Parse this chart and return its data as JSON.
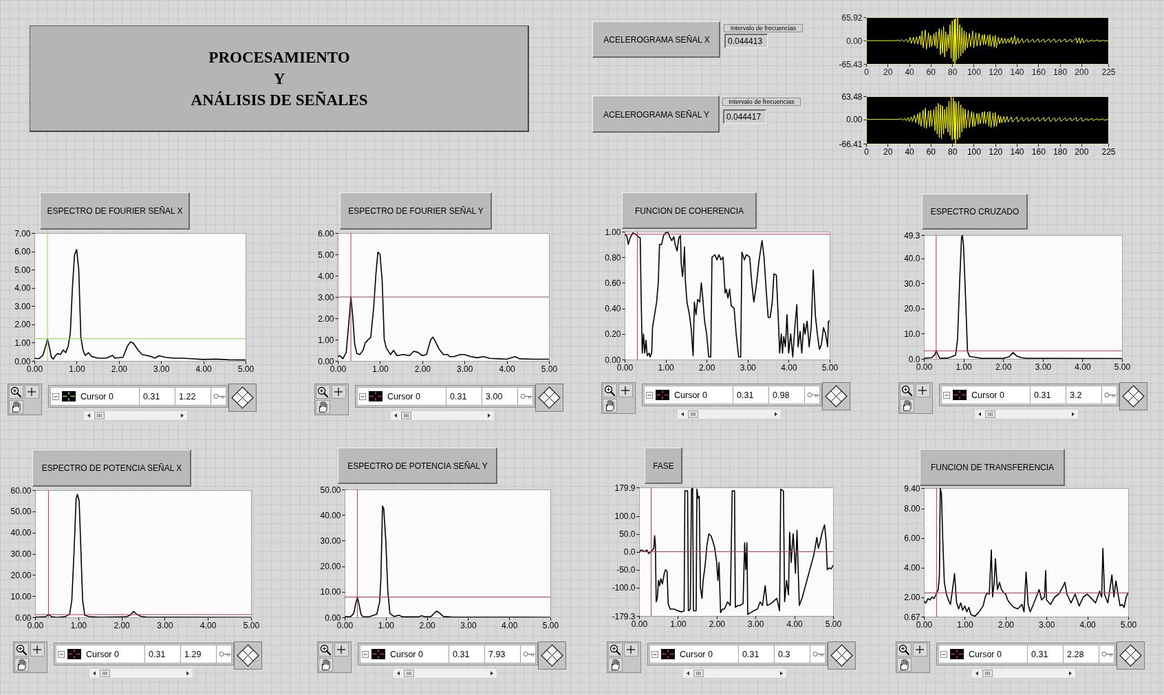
{
  "chart_data": [
    {
      "type": "other",
      "title": "PROCESAMIENTO\nY\nANÁLISIS DE SEÑALES"
    },
    {
      "type": "line",
      "ylabel": "ACELEROGRAMA SEÑAL X",
      "annotations": [
        "Intervalo de frecuencias",
        "0.044413"
      ],
      "color": "#ffff00",
      "xlim": [
        0,
        225
      ],
      "ylim": [
        -65.43,
        65.92
      ],
      "xticks": [
        0,
        20,
        40,
        60,
        80,
        100,
        120,
        140,
        160,
        180,
        200,
        225
      ],
      "yticks": [
        -65.43,
        {
          "value": 0,
          "label": "0.00"
        },
        65.92
      ],
      "x": [
        0,
        10,
        20,
        28,
        30,
        31,
        33,
        35,
        37,
        39,
        41,
        42,
        44,
        45,
        47,
        48,
        50,
        51,
        52,
        53,
        55,
        56,
        58,
        59,
        60,
        61,
        63,
        64,
        65,
        66,
        68,
        69,
        70,
        71,
        72,
        73,
        74,
        75,
        76,
        77,
        78,
        79,
        80,
        81,
        82,
        82.5,
        83,
        84,
        85,
        86,
        87,
        88,
        89,
        90,
        91,
        92,
        93,
        94,
        96,
        97,
        99,
        100,
        102,
        103,
        105,
        106,
        108,
        109,
        110,
        111,
        113,
        114,
        115,
        116,
        118,
        119,
        120,
        121,
        123,
        124,
        126,
        127,
        129,
        130,
        132,
        133,
        135,
        136,
        138,
        139,
        141,
        142,
        145,
        146,
        150,
        151,
        155,
        156,
        160,
        161,
        165,
        166,
        170,
        171,
        175,
        176,
        180,
        181,
        185,
        186,
        190,
        191,
        195,
        196,
        198,
        199,
        201,
        202,
        205,
        206,
        210,
        211,
        215,
        216,
        220,
        221,
        225
      ],
      "values": [
        0,
        0,
        0,
        0,
        2,
        -2,
        3,
        -3,
        4,
        -4,
        9,
        -8,
        10,
        -9,
        11,
        -10,
        14,
        -12,
        27,
        -20,
        30,
        -24,
        22,
        -18,
        15,
        -17,
        20,
        -15,
        24,
        -22,
        34,
        -40,
        30,
        -35,
        40,
        -46,
        25,
        -30,
        18,
        -22,
        45,
        -50,
        56,
        -59,
        60,
        -65,
        62,
        -55,
        65,
        -50,
        45,
        -43,
        37,
        -35,
        28,
        -27,
        24,
        -20,
        21,
        -17,
        27,
        -20,
        22,
        -15,
        21,
        -14,
        16,
        -12,
        18,
        -11,
        15,
        -15,
        17,
        -17,
        13,
        -18,
        15,
        -20,
        10,
        -9,
        8,
        -8,
        7,
        -8,
        6,
        -6,
        9,
        -9,
        13,
        -11,
        8,
        -7,
        6,
        -6,
        5,
        -5,
        4,
        -5,
        5,
        -4,
        4,
        -5,
        5,
        -4,
        5,
        -5,
        4,
        -4,
        5,
        -4,
        4,
        -4,
        7,
        -7,
        8,
        -8,
        7,
        -6,
        3,
        -3,
        2,
        -2,
        2,
        -2,
        1,
        -1,
        0
      ]
    },
    {
      "type": "line",
      "ylabel": "ACELEROGRAMA SEÑAL Y",
      "annotations": [
        "Intervalo de frecuencias",
        "0.044417"
      ],
      "color": "#ffff00",
      "xlim": [
        0,
        225
      ],
      "ylim": [
        -66.41,
        63.48
      ],
      "xticks": [
        0,
        20,
        40,
        60,
        80,
        100,
        120,
        140,
        160,
        180,
        200,
        225
      ],
      "yticks": [
        -66.41,
        {
          "value": 0,
          "label": "0.00"
        },
        63.48
      ],
      "x": [
        0,
        15,
        30,
        33,
        34,
        36,
        37,
        39,
        40,
        42,
        43,
        45,
        46,
        48,
        49,
        50,
        51,
        53,
        54,
        55,
        56,
        58,
        59,
        60,
        61,
        63,
        64,
        65,
        66,
        67,
        68,
        69,
        70,
        71,
        72,
        73,
        74,
        75,
        76,
        77,
        78,
        79,
        80,
        81,
        82,
        82.5,
        83,
        84,
        85,
        86,
        87,
        88,
        89,
        90,
        91,
        92,
        93,
        95,
        96,
        98,
        99,
        100,
        101,
        103,
        104,
        105,
        106,
        108,
        109,
        110,
        111,
        113,
        114,
        115,
        116,
        118,
        119,
        120,
        121,
        123,
        124,
        125,
        126,
        128,
        129,
        131,
        132,
        135,
        136,
        140,
        141,
        145,
        146,
        150,
        151,
        155,
        156,
        160,
        161,
        165,
        166,
        170,
        171,
        175,
        176,
        180,
        181,
        185,
        186,
        190,
        191,
        195,
        196,
        200,
        201,
        205,
        206,
        210,
        211,
        215,
        216,
        220,
        221,
        225
      ],
      "values": [
        0,
        0,
        0,
        2,
        -2,
        3,
        -3,
        5,
        -5,
        7,
        -6,
        12,
        -9,
        15,
        -14,
        19,
        -19,
        25,
        -22,
        31,
        -25,
        24,
        -20,
        25,
        -19,
        28,
        -31,
        35,
        -40,
        44,
        -50,
        40,
        -53,
        37,
        -40,
        28,
        -25,
        35,
        -35,
        50,
        -44,
        63,
        -56,
        59,
        -53,
        50,
        -66,
        45,
        -55,
        50,
        -50,
        40,
        -35,
        31,
        -25,
        28,
        -24,
        25,
        -22,
        22,
        -20,
        19,
        -19,
        17,
        -14,
        16,
        -12,
        20,
        -12,
        22,
        -12,
        20,
        -18,
        22,
        -22,
        18,
        -20,
        19,
        -19,
        12,
        -10,
        9,
        -9,
        8,
        -8,
        8,
        -7,
        7,
        -7,
        7,
        -7,
        6,
        -5,
        5,
        -5,
        5,
        -4,
        5,
        -5,
        5,
        -5,
        6,
        -6,
        5,
        -5,
        5,
        -5,
        4,
        -4,
        4,
        -4,
        5,
        -5,
        5,
        -5,
        3,
        -3,
        3,
        -3,
        2,
        -2,
        2,
        -2,
        0
      ]
    },
    {
      "type": "line",
      "title": "ESPECTRO DE FOURIER SEÑAL X",
      "annotations": [
        "Cursor 0",
        "0.31",
        "1.22"
      ],
      "color": "#000000",
      "xlim": [
        0,
        5
      ],
      "ylim": [
        0,
        7
      ],
      "xticks": [
        {
          "value": 0,
          "label": "0.00"
        },
        {
          "value": 1,
          "label": "1.00"
        },
        {
          "value": 2,
          "label": "2.00"
        },
        {
          "value": 3,
          "label": "3.00"
        },
        {
          "value": 4,
          "label": "4.00"
        },
        {
          "value": 5,
          "label": "5.00"
        }
      ],
      "yticks": [
        {
          "value": 0,
          "label": "0.00"
        },
        {
          "value": 1,
          "label": "1.00"
        },
        {
          "value": 2,
          "label": "2.00"
        },
        {
          "value": 3,
          "label": "3.00"
        },
        {
          "value": 4,
          "label": "4.00"
        },
        {
          "value": 5,
          "label": "5.00"
        },
        {
          "value": 6,
          "label": "6.00"
        },
        {
          "value": 7,
          "label": "7.00"
        }
      ],
      "ref_lines": [
        {
          "axis": "x",
          "value": 0.31,
          "color": "#80e050"
        },
        {
          "axis": "y",
          "value": 1.22,
          "color": "#80e050"
        }
      ],
      "x": [
        0,
        0.1,
        0.2,
        0.28,
        0.31,
        0.36,
        0.4,
        0.45,
        0.5,
        0.55,
        0.62,
        0.68,
        0.74,
        0.8,
        0.85,
        0.9,
        0.95,
        1.0,
        1.05,
        1.1,
        1.15,
        1.2,
        1.28,
        1.35,
        1.5,
        1.7,
        1.85,
        1.9,
        2.1,
        2.2,
        2.28,
        2.35,
        2.45,
        2.55,
        2.65,
        2.75,
        2.85,
        2.95,
        3.1,
        3.3,
        3.5,
        3.7,
        4.0,
        4.3,
        4.6,
        5.0
      ],
      "values": [
        0.14,
        0.12,
        0.3,
        0.9,
        1.2,
        0.7,
        0.2,
        0.1,
        0.3,
        0.4,
        0.35,
        0.6,
        0.45,
        0.8,
        1.5,
        4.0,
        5.8,
        6.1,
        5.0,
        1.3,
        0.6,
        0.3,
        0.45,
        0.25,
        0.15,
        0.15,
        0.3,
        0.15,
        0.2,
        0.8,
        1.05,
        0.95,
        0.6,
        0.35,
        0.3,
        0.25,
        0.15,
        0.28,
        0.2,
        0.15,
        0.15,
        0.12,
        0.08,
        0.1,
        0.06,
        0.05
      ]
    },
    {
      "type": "line",
      "title": "ESPECTRO DE FOURIER SEÑAL Y",
      "annotations": [
        "Cursor 0",
        "0.31",
        "3.00"
      ],
      "color": "#000000",
      "xlim": [
        0,
        5
      ],
      "ylim": [
        0,
        6
      ],
      "xticks": [
        {
          "value": 0,
          "label": "0.00"
        },
        {
          "value": 1,
          "label": "1.00"
        },
        {
          "value": 2,
          "label": "2.00"
        },
        {
          "value": 3,
          "label": "3.00"
        },
        {
          "value": 4,
          "label": "4.00"
        },
        {
          "value": 5,
          "label": "5.00"
        }
      ],
      "yticks": [
        {
          "value": 0,
          "label": "0.00"
        },
        {
          "value": 1,
          "label": "1.00"
        },
        {
          "value": 2,
          "label": "2.00"
        },
        {
          "value": 3,
          "label": "3.00"
        },
        {
          "value": 4,
          "label": "4.00"
        },
        {
          "value": 5,
          "label": "5.00"
        },
        {
          "value": 6,
          "label": "6.00"
        }
      ],
      "ref_lines": [
        {
          "axis": "x",
          "value": 0.31,
          "color": "#c8325f"
        },
        {
          "axis": "y",
          "value": 3.0,
          "color": "#c8325f"
        }
      ],
      "x": [
        0,
        0.05,
        0.12,
        0.2,
        0.27,
        0.31,
        0.35,
        0.4,
        0.45,
        0.52,
        0.6,
        0.65,
        0.72,
        0.78,
        0.85,
        0.9,
        0.95,
        1.0,
        1.05,
        1.1,
        1.15,
        1.25,
        1.32,
        1.4,
        1.55,
        1.7,
        1.8,
        1.9,
        2.0,
        2.1,
        2.2,
        2.25,
        2.3,
        2.4,
        2.5,
        2.6,
        2.65,
        2.75,
        2.9,
        3.0,
        3.15,
        3.3,
        3.45,
        3.6,
        3.8,
        4.0,
        4.2,
        4.3,
        4.6,
        5.0
      ],
      "values": [
        0.2,
        0.25,
        0.1,
        0.4,
        2.0,
        3.0,
        2.2,
        0.8,
        0.35,
        0.3,
        0.5,
        0.85,
        1.0,
        1.1,
        2.5,
        4.0,
        5.1,
        5.0,
        3.8,
        1.0,
        0.6,
        0.3,
        0.5,
        0.25,
        0.3,
        0.25,
        0.45,
        0.4,
        0.25,
        0.3,
        1.0,
        1.12,
        0.95,
        0.55,
        0.3,
        0.3,
        0.2,
        0.2,
        0.3,
        0.3,
        0.2,
        0.15,
        0.2,
        0.12,
        0.1,
        0.08,
        0.2,
        0.1,
        0.08,
        0.08
      ]
    },
    {
      "type": "line",
      "title": "FUNCION DE COHERENCIA",
      "annotations": [
        "Cursor 0",
        "0.31",
        "0.98"
      ],
      "color": "#000000",
      "xlim": [
        0,
        5
      ],
      "ylim": [
        0,
        1
      ],
      "xticks": [
        {
          "value": 0,
          "label": "0.00"
        },
        {
          "value": 1,
          "label": "1.00"
        },
        {
          "value": 2,
          "label": "2.00"
        },
        {
          "value": 3,
          "label": "3.00"
        },
        {
          "value": 4,
          "label": "4.00"
        },
        {
          "value": 5,
          "label": "5.00"
        }
      ],
      "yticks": [
        {
          "value": 0,
          "label": "0.00"
        },
        {
          "value": 0.2,
          "label": "0.20"
        },
        {
          "value": 0.4,
          "label": "0.40"
        },
        {
          "value": 0.6,
          "label": "0.60"
        },
        {
          "value": 0.8,
          "label": "0.80"
        },
        {
          "value": 1,
          "label": "1.00"
        }
      ],
      "ref_lines": [
        {
          "axis": "x",
          "value": 0.31,
          "color": "#c8325f"
        },
        {
          "axis": "y",
          "value": 0.98,
          "color": "#c8325f"
        }
      ],
      "x": [
        0,
        0.05,
        0.09,
        0.13,
        0.2,
        0.27,
        0.33,
        0.38,
        0.4,
        0.43,
        0.46,
        0.49,
        0.52,
        0.55,
        0.6,
        0.62,
        0.66,
        0.68,
        0.72,
        0.78,
        0.82,
        0.85,
        0.9,
        0.95,
        1.0,
        1.05,
        1.1,
        1.15,
        1.2,
        1.23,
        1.28,
        1.32,
        1.36,
        1.38,
        1.41,
        1.43,
        1.46,
        1.48,
        1.52,
        1.58,
        1.62,
        1.67,
        1.7,
        1.74,
        1.78,
        1.83,
        1.87,
        1.9,
        1.95,
        2.0,
        2.05,
        2.1,
        2.13,
        2.2,
        2.25,
        2.3,
        2.35,
        2.4,
        2.45,
        2.48,
        2.52,
        2.56,
        2.6,
        2.67,
        2.72,
        2.78,
        2.83,
        2.86,
        2.92,
        2.97,
        3.05,
        3.1,
        3.15,
        3.2,
        3.28,
        3.35,
        3.4,
        3.45,
        3.5,
        3.55,
        3.6,
        3.64,
        3.7,
        3.75,
        3.78,
        3.82,
        3.85,
        3.88,
        3.92,
        3.96,
        4.0,
        4.05,
        4.1,
        4.15,
        4.2,
        4.23,
        4.28,
        4.32,
        4.37,
        4.4,
        4.45,
        4.5,
        4.55,
        4.6,
        4.65,
        4.7,
        4.75,
        4.8,
        4.85,
        4.9,
        4.95,
        4.97,
        5.0
      ],
      "values": [
        0.98,
        0.97,
        0.9,
        0.95,
        0.99,
        0.98,
        0.96,
        0.95,
        0.52,
        0.05,
        0.2,
        0.05,
        0.15,
        0.03,
        0.05,
        0.02,
        0.05,
        0.25,
        0.33,
        0.45,
        0.6,
        0.9,
        0.9,
        0.97,
        0.99,
        1.0,
        0.96,
        0.93,
        0.96,
        0.9,
        0.85,
        0.95,
        0.97,
        0.75,
        0.65,
        0.7,
        0.88,
        0.62,
        0.45,
        0.35,
        0.25,
        0.03,
        0.45,
        0.35,
        0.47,
        0.45,
        0.6,
        0.5,
        0.3,
        0.2,
        0.02,
        0.02,
        0.8,
        0.82,
        0.78,
        0.82,
        0.78,
        0.8,
        0.52,
        0.55,
        0.48,
        0.55,
        0.42,
        0.4,
        0.2,
        0.02,
        0.02,
        0.84,
        0.78,
        0.82,
        0.8,
        0.6,
        0.45,
        0.55,
        0.78,
        0.93,
        0.8,
        0.55,
        0.33,
        0.33,
        0.45,
        0.67,
        0.66,
        0.3,
        0.05,
        0.2,
        0.05,
        0.18,
        0.1,
        0.35,
        0.05,
        0.2,
        0.02,
        0.25,
        0.43,
        0.1,
        0.22,
        0.05,
        0.28,
        0.2,
        0.3,
        0.1,
        0.25,
        0.7,
        0.35,
        0.2,
        0.08,
        0.12,
        0.25,
        0.2,
        0.1,
        0.3,
        0.3
      ]
    },
    {
      "type": "line",
      "title": "ESPECTRO CRUZADO",
      "annotations": [
        "Cursor 0",
        "0.31",
        "3.2"
      ],
      "color": "#000000",
      "xlim": [
        0,
        5
      ],
      "ylim": [
        0,
        49.3
      ],
      "xticks": [
        {
          "value": 0,
          "label": "0.00"
        },
        {
          "value": 1,
          "label": "1.00"
        },
        {
          "value": 2,
          "label": "2.00"
        },
        {
          "value": 3,
          "label": "3.00"
        },
        {
          "value": 4,
          "label": "4.00"
        },
        {
          "value": 5,
          "label": "5.00"
        }
      ],
      "yticks": [
        {
          "value": 0,
          "label": "0.0"
        },
        {
          "value": 10,
          "label": "10.0"
        },
        {
          "value": 20,
          "label": "20.0"
        },
        {
          "value": 30,
          "label": "30.0"
        },
        {
          "value": 40,
          "label": "40.0"
        },
        49.3
      ],
      "ref_lines": [
        {
          "axis": "x",
          "value": 0.31,
          "color": "#c8325f"
        },
        {
          "axis": "y",
          "value": 3.2,
          "color": "#c8325f"
        }
      ],
      "x": [
        0,
        0.2,
        0.27,
        0.31,
        0.36,
        0.4,
        0.6,
        0.7,
        0.8,
        0.85,
        0.9,
        0.95,
        0.97,
        1.0,
        1.05,
        1.1,
        1.15,
        1.2,
        1.3,
        1.45,
        2.0,
        2.15,
        2.25,
        2.35,
        2.45,
        2.6,
        5.0
      ],
      "values": [
        0.2,
        0.5,
        1.5,
        3.2,
        1.5,
        0.2,
        0.3,
        0.8,
        1.5,
        8.0,
        30.0,
        48.5,
        49.3,
        45,
        25,
        3.0,
        1.0,
        0.8,
        0.6,
        0.2,
        0.2,
        0.8,
        2.5,
        1.0,
        0.5,
        0.2,
        0.1
      ]
    },
    {
      "type": "line",
      "title": "ESPECTRO DE POTENCIA SEÑAL X",
      "annotations": [
        "Cursor 0",
        "0.31",
        "1.29"
      ],
      "color": "#000000",
      "xlim": [
        0,
        5
      ],
      "ylim": [
        0,
        60
      ],
      "xticks": [
        {
          "value": 0,
          "label": "0.00"
        },
        {
          "value": 1,
          "label": "1.00"
        },
        {
          "value": 2,
          "label": "2.00"
        },
        {
          "value": 3,
          "label": "3.00"
        },
        {
          "value": 4,
          "label": "4.00"
        },
        {
          "value": 5,
          "label": "5.00"
        }
      ],
      "yticks": [
        {
          "value": 0,
          "label": "0.00"
        },
        {
          "value": 10,
          "label": "10.00"
        },
        {
          "value": 20,
          "label": "20.00"
        },
        {
          "value": 30,
          "label": "30.00"
        },
        {
          "value": 40,
          "label": "40.00"
        },
        {
          "value": 50,
          "label": "50.00"
        },
        {
          "value": 60,
          "label": "60.00"
        }
      ],
      "ref_lines": [
        {
          "axis": "x",
          "value": 0.31,
          "color": "#c8325f"
        },
        {
          "axis": "y",
          "value": 1.29,
          "color": "#c8325f"
        }
      ],
      "x": [
        0,
        0.25,
        0.31,
        0.38,
        0.5,
        0.7,
        0.8,
        0.85,
        0.9,
        0.95,
        0.98,
        1.02,
        1.05,
        1.1,
        1.15,
        1.25,
        1.5,
        2.1,
        2.2,
        2.28,
        2.35,
        2.45,
        2.6,
        5.0
      ],
      "values": [
        0.1,
        0.3,
        1.4,
        0.3,
        0,
        0.3,
        1.5,
        8.0,
        30,
        56,
        58,
        55,
        38,
        8,
        1.0,
        0.3,
        0.1,
        0.2,
        1.0,
        2.8,
        1.5,
        0.4,
        0.1,
        0
      ]
    },
    {
      "type": "line",
      "title": "ESPECTRO DE POTENCIA SEÑAL Y",
      "annotations": [
        "Cursor 0",
        "0.31",
        "7.93"
      ],
      "color": "#000000",
      "xlim": [
        0,
        5
      ],
      "ylim": [
        0,
        50
      ],
      "xticks": [
        {
          "value": 0,
          "label": "0.00"
        },
        {
          "value": 1,
          "label": "1.00"
        },
        {
          "value": 2,
          "label": "2.00"
        },
        {
          "value": 3,
          "label": "3.00"
        },
        {
          "value": 4,
          "label": "4.00"
        },
        {
          "value": 5,
          "label": "5.00"
        }
      ],
      "yticks": [
        {
          "value": 0,
          "label": "0.00"
        },
        {
          "value": 10,
          "label": "10.00"
        },
        {
          "value": 20,
          "label": "20.00"
        },
        {
          "value": 30,
          "label": "30.00"
        },
        {
          "value": 40,
          "label": "40.00"
        },
        {
          "value": 50,
          "label": "50.00"
        }
      ],
      "ref_lines": [
        {
          "axis": "x",
          "value": 0.31,
          "color": "#c8325f"
        },
        {
          "axis": "y",
          "value": 7.93,
          "color": "#c8325f"
        }
      ],
      "x": [
        0,
        0.15,
        0.22,
        0.27,
        0.31,
        0.35,
        0.4,
        0.45,
        0.6,
        0.7,
        0.78,
        0.85,
        0.88,
        0.92,
        0.95,
        1.0,
        1.05,
        1.1,
        1.2,
        1.32,
        1.4,
        1.8,
        1.87,
        1.95,
        2.1,
        2.2,
        2.25,
        2.32,
        2.4,
        2.6,
        5.0
      ],
      "values": [
        0.2,
        0.3,
        1.5,
        5.5,
        7.9,
        5.0,
        1.0,
        0.2,
        0.2,
        0.8,
        1.2,
        6.0,
        15,
        43.5,
        42.5,
        30,
        10,
        1.5,
        0.3,
        0.8,
        0.2,
        0.2,
        0.6,
        0.2,
        0.3,
        2.0,
        2.4,
        1.5,
        0.3,
        0.1,
        0
      ]
    },
    {
      "type": "line",
      "title": "FASE",
      "annotations": [
        "Cursor 0",
        "0.31",
        "0.3"
      ],
      "color": "#000000",
      "xlim": [
        0,
        5
      ],
      "ylim": [
        -179.3,
        179.9
      ],
      "xticks": [
        {
          "value": 0,
          "label": "0.00"
        },
        {
          "value": 1,
          "label": "1.00"
        },
        {
          "value": 2,
          "label": "2.00"
        },
        {
          "value": 3,
          "label": "3.00"
        },
        {
          "value": 4,
          "label": "4.00"
        },
        {
          "value": 5,
          "label": "5.00"
        }
      ],
      "yticks": [
        -179.3,
        {
          "value": -100,
          "label": "-100.0"
        },
        {
          "value": -50,
          "label": "-50.0"
        },
        {
          "value": 0,
          "label": "0.0"
        },
        {
          "value": 50,
          "label": "50.0"
        },
        {
          "value": 100,
          "label": "100.0"
        },
        179.9
      ],
      "ref_lines": [
        {
          "axis": "x",
          "value": 0.31,
          "color": "#c8325f"
        },
        {
          "axis": "y",
          "value": 0.3,
          "color": "#c8325f"
        }
      ],
      "x": [
        0,
        0.05,
        0.1,
        0.15,
        0.2,
        0.25,
        0.3,
        0.35,
        0.38,
        0.4,
        0.42,
        0.44,
        0.47,
        0.5,
        0.53,
        0.56,
        0.6,
        0.65,
        0.68,
        0.72,
        0.75,
        0.8,
        0.9,
        1.0,
        1.1,
        1.16,
        1.18,
        1.25,
        1.27,
        1.32,
        1.35,
        1.38,
        1.4,
        1.47,
        1.49,
        1.52,
        1.55,
        1.58,
        1.62,
        1.65,
        1.7,
        1.75,
        1.8,
        1.85,
        1.9,
        1.95,
        2.0,
        2.03,
        2.06,
        2.1,
        2.15,
        2.2,
        2.28,
        2.35,
        2.4,
        2.46,
        2.48,
        2.55,
        2.6,
        2.68,
        2.72,
        2.75,
        2.78,
        2.8,
        2.88,
        2.95,
        3.05,
        3.12,
        3.18,
        3.25,
        3.3,
        3.4,
        3.55,
        3.62,
        3.65,
        3.72,
        3.75,
        3.8,
        3.85,
        3.88,
        3.92,
        3.97,
        4.0,
        4.03,
        4.07,
        4.1,
        4.13,
        4.2,
        4.3,
        4.4,
        4.5,
        4.55,
        4.58,
        4.62,
        4.67,
        4.72,
        4.78,
        4.82,
        4.85,
        4.9,
        4.95,
        5.0
      ],
      "values": [
        -2,
        5,
        3,
        0,
        5,
        -5,
        0,
        5,
        10,
        45,
        20,
        -140,
        -130,
        -80,
        -95,
        -75,
        -90,
        -60,
        -50,
        -55,
        -145,
        -160,
        -160,
        -165,
        -168,
        -165,
        170,
        170,
        -165,
        -160,
        175,
        178,
        -165,
        -165,
        175,
        150,
        155,
        -100,
        -130,
        -80,
        -40,
        20,
        50,
        45,
        30,
        10,
        -30,
        -80,
        -30,
        -170,
        -160,
        -160,
        -140,
        -150,
        170,
        170,
        -155,
        -150,
        -150,
        -145,
        25,
        -50,
        25,
        -175,
        -170,
        -165,
        -160,
        -140,
        -150,
        -95,
        -150,
        -145,
        -130,
        -165,
        175,
        170,
        -140,
        -80,
        -120,
        55,
        -30,
        50,
        0,
        -60,
        60,
        -50,
        -150,
        -130,
        -90,
        -50,
        -10,
        20,
        40,
        10,
        30,
        55,
        75,
        30,
        -50,
        -45,
        -48,
        -38
      ]
    },
    {
      "type": "line",
      "title": "FUNCION DE TRANSFERENCIA",
      "annotations": [
        "Cursor 0",
        "0.31",
        "2.28"
      ],
      "color": "#000000",
      "xlim": [
        0,
        5
      ],
      "ylim": [
        0.67,
        9.4
      ],
      "xticks": [
        {
          "value": 0,
          "label": "0.00"
        },
        {
          "value": 1,
          "label": "1.00"
        },
        {
          "value": 2,
          "label": "2.00"
        },
        {
          "value": 3,
          "label": "3.00"
        },
        {
          "value": 4,
          "label": "4.00"
        },
        {
          "value": 5,
          "label": "5.00"
        }
      ],
      "yticks": [
        0.67,
        {
          "value": 2,
          "label": "2.00"
        },
        {
          "value": 4,
          "label": "4.00"
        },
        {
          "value": 6,
          "label": "6.00"
        },
        {
          "value": 8,
          "label": "8.00"
        },
        {
          "value": 9.4,
          "label": "9.40"
        }
      ],
      "ref_lines": [
        {
          "axis": "x",
          "value": 0.31,
          "color": "#c8325f"
        },
        {
          "axis": "y",
          "value": 2.28,
          "color": "#c8325f"
        }
      ],
      "x": [
        0,
        0.05,
        0.1,
        0.15,
        0.2,
        0.25,
        0.3,
        0.35,
        0.38,
        0.4,
        0.43,
        0.46,
        0.5,
        0.55,
        0.6,
        0.65,
        0.7,
        0.75,
        0.8,
        0.85,
        0.9,
        0.95,
        1.0,
        1.05,
        1.1,
        1.15,
        1.25,
        1.35,
        1.45,
        1.5,
        1.55,
        1.6,
        1.65,
        1.68,
        1.72,
        1.75,
        1.8,
        1.85,
        1.9,
        1.95,
        2.0,
        2.05,
        2.1,
        2.2,
        2.3,
        2.4,
        2.45,
        2.5,
        2.55,
        2.6,
        2.65,
        2.75,
        2.82,
        2.88,
        2.95,
        2.98,
        3.0,
        3.1,
        3.2,
        3.3,
        3.4,
        3.45,
        3.5,
        3.6,
        3.7,
        3.8,
        3.9,
        4.0,
        4.1,
        4.2,
        4.3,
        4.35,
        4.38,
        4.42,
        4.5,
        4.55,
        4.6,
        4.65,
        4.7,
        4.75,
        4.8,
        4.85,
        4.9,
        4.95,
        5.0
      ],
      "values": [
        1.7,
        1.6,
        1.9,
        1.8,
        2.0,
        1.9,
        2.2,
        2.5,
        3.5,
        9.4,
        9.0,
        6.0,
        3.0,
        2.2,
        1.8,
        1.5,
        2.5,
        3.6,
        1.6,
        1.2,
        1.6,
        1.1,
        1.4,
        1.0,
        1.3,
        0.8,
        0.7,
        1.0,
        1.4,
        2.0,
        2.3,
        2.2,
        5.2,
        2.0,
        3.0,
        4.6,
        2.5,
        3.0,
        2.5,
        2.3,
        2.2,
        1.8,
        1.6,
        1.3,
        1.2,
        1.5,
        1.0,
        3.7,
        1.5,
        1.0,
        1.3,
        2.0,
        2.5,
        1.8,
        2.0,
        3.8,
        1.8,
        1.5,
        2.0,
        2.2,
        2.7,
        3.0,
        2.2,
        1.6,
        2.2,
        1.4,
        2.0,
        2.2,
        1.9,
        1.6,
        2.4,
        2.0,
        5.3,
        2.2,
        1.6,
        2.5,
        3.5,
        2.0,
        3.1,
        2.2,
        1.4,
        1.5,
        1.3,
        2.0,
        2.3
      ]
    }
  ]
}
